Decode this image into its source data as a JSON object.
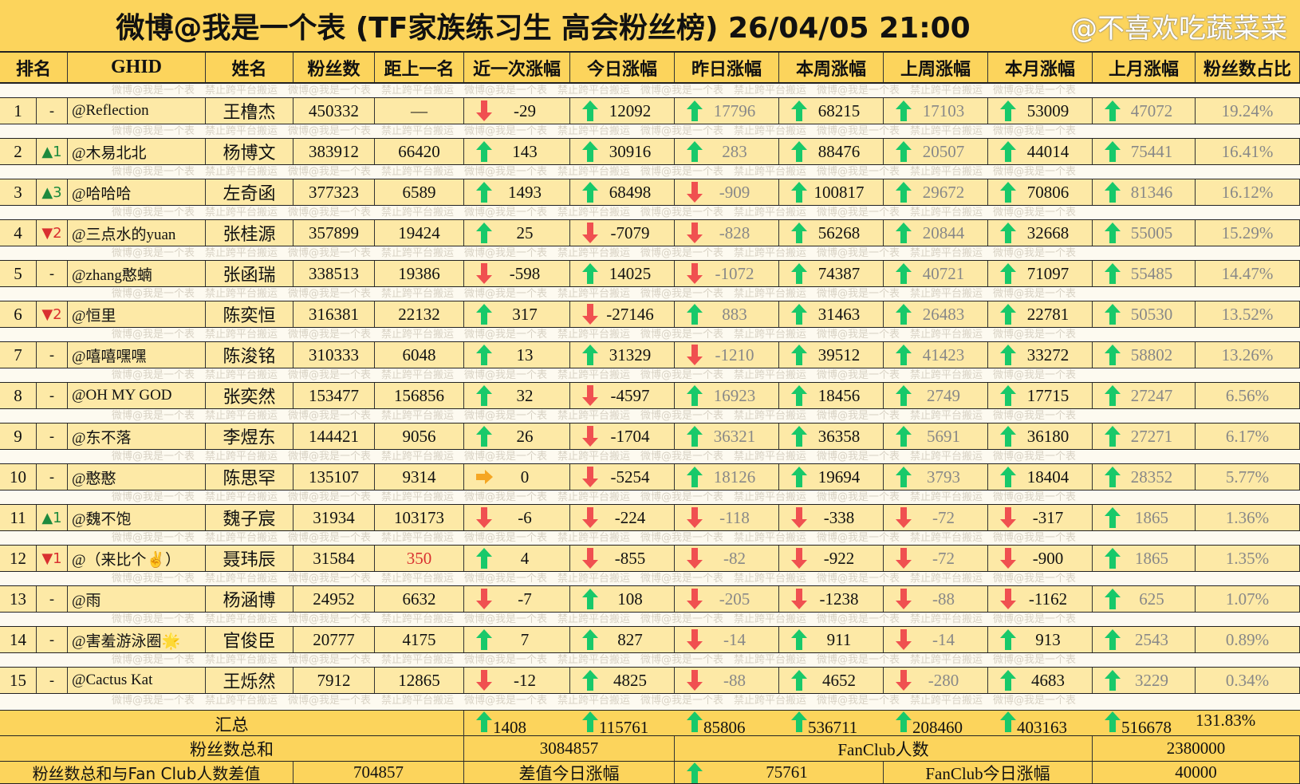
{
  "title": "微博@我是一个表 (TF家族练习生 高会粉丝榜)  26/04/05 21:00",
  "watermark": "微博@我是一个表　禁止跨平台搬运　微博@我是一个表　禁止跨平台搬运　微博@我是一个表　禁止跨平台搬运　微博@我是一个表　禁止跨平台搬运　微博@我是一个表　禁止跨平台搬运　微博@我是一个表",
  "signature": "@不喜欢吃蔬菜菜",
  "colors": {
    "up": "#18c96a",
    "down": "#f05050",
    "flat": "#f5a623",
    "header": "#fcd45c",
    "row": "#fde9a6"
  },
  "headers": [
    "排名",
    "GHID",
    "姓名",
    "粉丝数",
    "距上一名",
    "近一次涨幅",
    "今日涨幅",
    "昨日涨幅",
    "本周涨幅",
    "上周涨幅",
    "本月涨幅",
    "上月涨幅",
    "粉丝数占比"
  ],
  "rows": [
    {
      "rank": "1",
      "change": "-",
      "ghid": "@Reflection",
      "name": "王橹杰",
      "fans": "450332",
      "gap": "—",
      "deltas": [
        "-29",
        "12092",
        "17796",
        "68215",
        "17103",
        "53009",
        "47072"
      ],
      "share": "19.24%"
    },
    {
      "rank": "2",
      "change": "▲1",
      "ghid": "@木易北北",
      "name": "杨博文",
      "fans": "383912",
      "gap": "66420",
      "deltas": [
        "143",
        "30916",
        "283",
        "88476",
        "20507",
        "44014",
        "75441"
      ],
      "share": "16.41%"
    },
    {
      "rank": "3",
      "change": "▲3",
      "ghid": "@哈哈哈",
      "name": "左奇函",
      "fans": "377323",
      "gap": "6589",
      "deltas": [
        "1493",
        "68498",
        "-909",
        "100817",
        "29672",
        "70806",
        "81346"
      ],
      "share": "16.12%"
    },
    {
      "rank": "4",
      "change": "▼2",
      "ghid": "@三点水的yuan",
      "name": "张桂源",
      "fans": "357899",
      "gap": "19424",
      "deltas": [
        "25",
        "-7079",
        "-828",
        "56268",
        "20844",
        "32668",
        "55005"
      ],
      "share": "15.29%"
    },
    {
      "rank": "5",
      "change": "-",
      "ghid": "@zhang憨蝻",
      "name": "张函瑞",
      "fans": "338513",
      "gap": "19386",
      "deltas": [
        "-598",
        "14025",
        "-1072",
        "74387",
        "40721",
        "71097",
        "55485"
      ],
      "share": "14.47%"
    },
    {
      "rank": "6",
      "change": "▼2",
      "ghid": "@恒里",
      "name": "陈奕恒",
      "fans": "316381",
      "gap": "22132",
      "deltas": [
        "317",
        "-27146",
        "883",
        "31463",
        "26483",
        "22781",
        "50530"
      ],
      "share": "13.52%"
    },
    {
      "rank": "7",
      "change": "-",
      "ghid": "@嘻嘻嘿嘿",
      "name": "陈浚铭",
      "fans": "310333",
      "gap": "6048",
      "deltas": [
        "13",
        "31329",
        "-1210",
        "39512",
        "41423",
        "33272",
        "58802"
      ],
      "share": "13.26%"
    },
    {
      "rank": "8",
      "change": "-",
      "ghid": "@OH MY GOD",
      "name": "张奕然",
      "fans": "153477",
      "gap": "156856",
      "deltas": [
        "32",
        "-4597",
        "16923",
        "18456",
        "2749",
        "17715",
        "27247"
      ],
      "share": "6.56%"
    },
    {
      "rank": "9",
      "change": "-",
      "ghid": "@东不落",
      "name": "李煜东",
      "fans": "144421",
      "gap": "9056",
      "deltas": [
        "26",
        "-1704",
        "36321",
        "36358",
        "5691",
        "36180",
        "27271"
      ],
      "share": "6.17%"
    },
    {
      "rank": "10",
      "change": "-",
      "ghid": "@憨憨",
      "name": "陈思罕",
      "fans": "135107",
      "gap": "9314",
      "deltas": [
        "0",
        "-5254",
        "18126",
        "19694",
        "3793",
        "18404",
        "28352"
      ],
      "share": "5.77%"
    },
    {
      "rank": "11",
      "change": "▲1",
      "ghid": "@魏不饱",
      "name": "魏子宸",
      "fans": "31934",
      "gap": "103173",
      "deltas": [
        "-6",
        "-224",
        "-118",
        "-338",
        "-72",
        "-317",
        "1865"
      ],
      "share": "1.36%"
    },
    {
      "rank": "12",
      "change": "▼1",
      "ghid": "@（来比个✌）",
      "name": "聂玮辰",
      "fans": "31584",
      "gap": "350",
      "gap_highlight": true,
      "deltas": [
        "4",
        "-855",
        "-82",
        "-922",
        "-72",
        "-900",
        "1865"
      ],
      "share": "1.35%"
    },
    {
      "rank": "13",
      "change": "-",
      "ghid": "@雨",
      "name": "杨涵博",
      "fans": "24952",
      "gap": "6632",
      "deltas": [
        "-7",
        "108",
        "-205",
        "-1238",
        "-88",
        "-1162",
        "625"
      ],
      "share": "1.07%"
    },
    {
      "rank": "14",
      "change": "-",
      "ghid": "@害羞游泳圈🌟",
      "name": "官俊臣",
      "fans": "20777",
      "gap": "4175",
      "deltas": [
        "7",
        "827",
        "-14",
        "911",
        "-14",
        "913",
        "2543"
      ],
      "share": "0.89%"
    },
    {
      "rank": "15",
      "change": "-",
      "ghid": "@Cactus Kat",
      "name": "王烁然",
      "fans": "7912",
      "gap": "12865",
      "deltas": [
        "-12",
        "4825",
        "-88",
        "4652",
        "-280",
        "4683",
        "3229"
      ],
      "share": "0.34%"
    }
  ],
  "summary": {
    "label": "汇总",
    "deltas": [
      "1408",
      "115761",
      "85806",
      "536711",
      "208460",
      "403163",
      "516678"
    ],
    "share": "131.83%"
  },
  "totals": {
    "fans_sum_label": "粉丝数总和",
    "fans_sum": "3084857",
    "fanclub_label": "FanClub人数",
    "fanclub": "2380000"
  },
  "diff": {
    "label": "粉丝数总和与Fan Club人数差值",
    "value": "704857",
    "today_label": "差值今日涨幅",
    "today": "75761",
    "fanclub_today_label": "FanClub今日涨幅",
    "fanclub_today": "40000"
  }
}
